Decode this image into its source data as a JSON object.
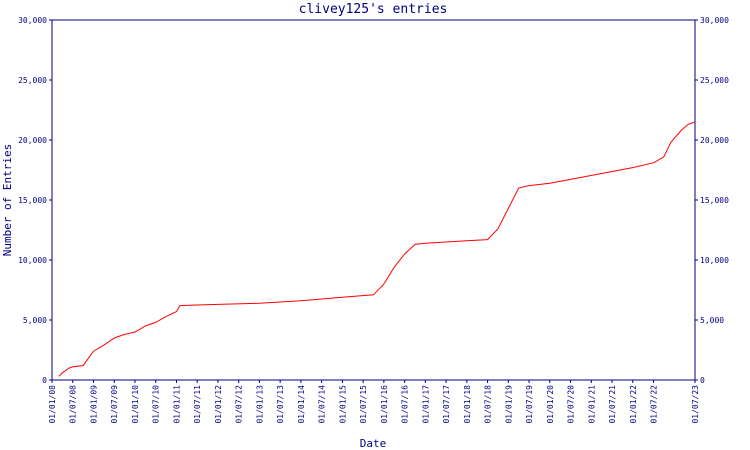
{
  "chart_data": {
    "type": "line",
    "title": "clivey125's entries",
    "x_label": "Date",
    "y_label": "Number of Entries",
    "x": [
      "01/03/08",
      "01/04/08",
      "01/06/08",
      "01/07/08",
      "01/10/08",
      "01/01/09",
      "01/04/09",
      "01/07/09",
      "01/10/09",
      "01/01/10",
      "01/04/10",
      "01/07/10",
      "01/10/10",
      "01/01/11",
      "01/02/11",
      "01/07/11",
      "01/01/12",
      "01/01/13",
      "01/01/14",
      "01/01/15",
      "01/10/15",
      "01/01/16",
      "01/04/16",
      "01/07/16",
      "01/10/16",
      "01/01/17",
      "01/01/18",
      "01/07/18",
      "01/10/18",
      "01/01/19",
      "01/04/19",
      "01/07/19",
      "01/01/20",
      "01/01/22",
      "01/07/22",
      "01/10/22",
      "01/12/22",
      "01/03/23",
      "01/05/23",
      "01/07/23"
    ],
    "series": [
      {
        "name": "Entries",
        "color": "#ff0000",
        "values": [
          300,
          600,
          1000,
          1100,
          1200,
          2400,
          2900,
          3500,
          3800,
          4000,
          4500,
          4800,
          5300,
          5700,
          6200,
          6250,
          6300,
          6400,
          6600,
          6900,
          7100,
          8000,
          9400,
          10500,
          11300,
          11400,
          11600,
          11700,
          12600,
          14300,
          16000,
          16200,
          16400,
          17700,
          18100,
          18600,
          19800,
          20800,
          21300,
          21500
        ]
      }
    ],
    "xlim": [
      "01/01/08",
      "01/07/23"
    ],
    "xticks": [
      "01/01/08",
      "01/07/08",
      "01/01/09",
      "01/07/09",
      "01/01/10",
      "01/07/10",
      "01/01/11",
      "01/07/11",
      "01/01/12",
      "01/07/12",
      "01/01/13",
      "01/07/13",
      "01/01/14",
      "01/07/14",
      "01/01/15",
      "01/07/15",
      "01/01/16",
      "01/07/16",
      "01/01/17",
      "01/07/17",
      "01/01/18",
      "01/07/18",
      "01/01/19",
      "01/07/19",
      "01/01/20",
      "01/07/20",
      "01/01/21",
      "01/07/21",
      "01/01/22",
      "01/07/22",
      "01/07/23"
    ],
    "ylim": [
      0,
      30000
    ],
    "yticks": [
      0,
      {
        "value": 5000,
        "label": "5,000"
      },
      {
        "value": 10000,
        "label": "10,000"
      },
      {
        "value": 15000,
        "label": "15,000"
      },
      {
        "value": 20000,
        "label": "20,000"
      },
      {
        "value": 25000,
        "label": "25,000"
      },
      {
        "value": 30000,
        "label": "30,000"
      }
    ],
    "axis_color": "#000080"
  }
}
